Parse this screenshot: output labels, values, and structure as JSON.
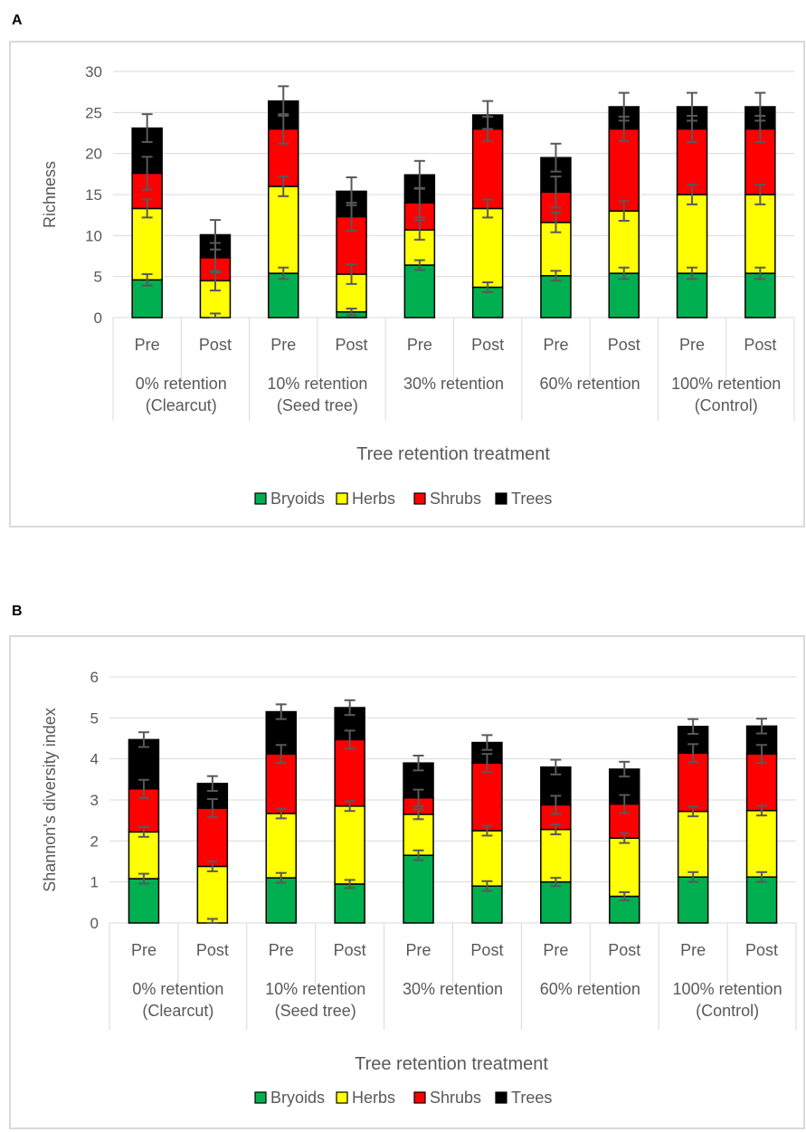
{
  "panels": [
    {
      "letter": "A"
    },
    {
      "letter": "B"
    }
  ],
  "chart_data": [
    {
      "type": "bar",
      "stacked": true,
      "ylabel": "Richness",
      "xlabel": "Tree  retention treatment",
      "ylim": [
        0,
        30
      ],
      "yticks": [
        "0",
        "5",
        "10",
        "15",
        "20",
        "25",
        "30"
      ],
      "ytick_values": [
        0,
        5,
        10,
        15,
        20,
        25,
        30
      ],
      "grid": true,
      "legend_position": "bottom",
      "categories": [
        "Pre",
        "Post",
        "Pre",
        "Post",
        "Pre",
        "Post",
        "Pre",
        "Post",
        "Pre",
        "Post"
      ],
      "groups": [
        {
          "label_lines": [
            "0% retention",
            "(Clearcut)"
          ]
        },
        {
          "label_lines": [
            "10% retention",
            "(Seed tree)"
          ]
        },
        {
          "label_lines": [
            "30% retention"
          ]
        },
        {
          "label_lines": [
            "60% retention"
          ]
        },
        {
          "label_lines": [
            "100% retention",
            "(Control)"
          ]
        }
      ],
      "series": [
        {
          "name": "Bryoids",
          "color": "#00b050",
          "values": [
            4.6,
            0.0,
            5.4,
            0.7,
            6.4,
            3.7,
            5.1,
            5.4,
            5.4,
            5.4
          ],
          "errors": [
            0.7,
            0.5,
            0.7,
            0.4,
            0.6,
            0.6,
            0.6,
            0.7,
            0.7,
            0.7
          ]
        },
        {
          "name": "Herbs",
          "color": "#ffff00",
          "values": [
            8.7,
            4.5,
            10.6,
            4.6,
            4.3,
            9.6,
            6.5,
            7.6,
            9.6,
            9.6
          ],
          "errors": [
            1.1,
            1.2,
            1.2,
            1.2,
            1.2,
            1.1,
            1.2,
            1.2,
            1.2,
            1.2
          ]
        },
        {
          "name": "Shrubs",
          "color": "#ff0000",
          "values": [
            4.3,
            2.8,
            7.0,
            7.0,
            3.3,
            9.7,
            3.7,
            10.0,
            8.0,
            8.0
          ],
          "errors": [
            2.0,
            1.8,
            1.8,
            1.7,
            1.8,
            1.5,
            1.9,
            1.5,
            1.6,
            1.6
          ]
        },
        {
          "name": "Trees",
          "color": "#000000",
          "values": [
            5.5,
            2.8,
            3.4,
            3.1,
            3.4,
            1.7,
            4.2,
            2.7,
            2.7,
            2.7
          ],
          "errors": [
            1.7,
            1.8,
            1.8,
            1.7,
            1.7,
            1.7,
            1.7,
            1.7,
            1.7,
            1.7
          ]
        }
      ]
    },
    {
      "type": "bar",
      "stacked": true,
      "ylabel": "Shannon's diversity index",
      "xlabel": "Tree  retention treatment",
      "ylim": [
        0,
        6
      ],
      "yticks": [
        "0",
        "1",
        "2",
        "3",
        "4",
        "5",
        "6"
      ],
      "ytick_values": [
        0,
        1,
        2,
        3,
        4,
        5,
        6
      ],
      "grid": true,
      "legend_position": "bottom",
      "categories": [
        "Pre",
        "Post",
        "Pre",
        "Post",
        "Pre",
        "Post",
        "Pre",
        "Post",
        "Pre",
        "Post"
      ],
      "groups": [
        {
          "label_lines": [
            "0% retention",
            "(Clearcut)"
          ]
        },
        {
          "label_lines": [
            "10% retention",
            "(Seed tree)"
          ]
        },
        {
          "label_lines": [
            "30% retention"
          ]
        },
        {
          "label_lines": [
            "60% retention"
          ]
        },
        {
          "label_lines": [
            "100% retention",
            "(Control)"
          ]
        }
      ],
      "series": [
        {
          "name": "Bryoids",
          "color": "#00b050",
          "values": [
            1.08,
            0.0,
            1.1,
            0.95,
            1.65,
            0.9,
            1.0,
            0.65,
            1.12,
            1.12
          ],
          "errors": [
            0.12,
            0.1,
            0.12,
            0.1,
            0.12,
            0.12,
            0.1,
            0.1,
            0.12,
            0.12
          ]
        },
        {
          "name": "Herbs",
          "color": "#ffff00",
          "values": [
            1.14,
            1.38,
            1.57,
            1.9,
            1.0,
            1.35,
            1.28,
            1.42,
            1.6,
            1.62
          ],
          "errors": [
            0.12,
            0.12,
            0.12,
            0.12,
            0.12,
            0.12,
            0.12,
            0.12,
            0.12,
            0.12
          ]
        },
        {
          "name": "Shrubs",
          "color": "#ff0000",
          "values": [
            1.05,
            1.42,
            1.45,
            1.62,
            0.4,
            1.65,
            0.6,
            0.83,
            1.42,
            1.38
          ],
          "errors": [
            0.22,
            0.22,
            0.22,
            0.22,
            0.2,
            0.22,
            0.22,
            0.22,
            0.22,
            0.22
          ]
        },
        {
          "name": "Trees",
          "color": "#000000",
          "values": [
            1.2,
            0.6,
            1.03,
            0.78,
            0.85,
            0.5,
            0.92,
            0.85,
            0.65,
            0.68
          ],
          "errors": [
            0.18,
            0.18,
            0.18,
            0.18,
            0.18,
            0.18,
            0.18,
            0.18,
            0.18,
            0.18
          ]
        }
      ]
    }
  ]
}
